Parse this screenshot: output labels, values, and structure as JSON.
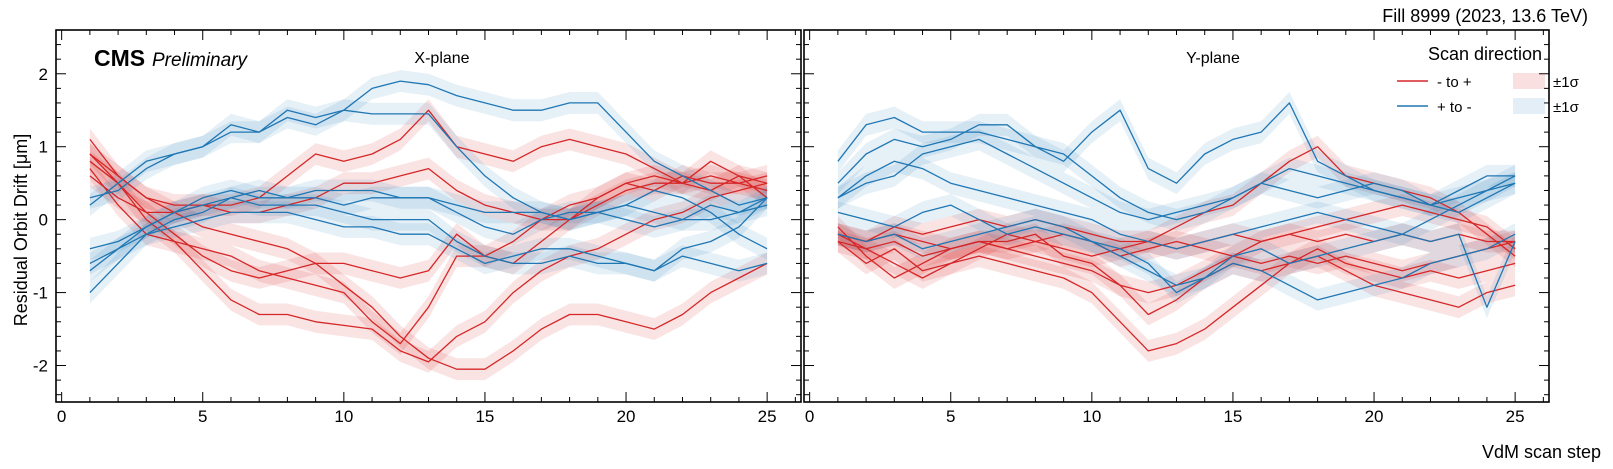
{
  "header": {
    "fill_label": "Fill 8999 (2023, 13.6 TeV)",
    "cms_label": "CMS",
    "preliminary_label": "Preliminary"
  },
  "chart_data": {
    "type": "line",
    "ylabel": "Residual Orbit Drift [μm]",
    "xlabel": "VdM scan step",
    "ylim": [
      -2.5,
      2.6
    ],
    "xlim": [
      -0.2,
      26.2
    ],
    "y_ticks": [
      -2,
      -1,
      0,
      1,
      2
    ],
    "x_ticks": [
      0,
      5,
      10,
      15,
      20,
      25
    ],
    "legend": {
      "title": "Scan direction",
      "entries": [
        {
          "label": "- to +",
          "color": "#d62728"
        },
        {
          "label": "+ to -",
          "color": "#1f77b4"
        }
      ],
      "band_labels": [
        "±1σ",
        "±1σ"
      ],
      "placement": "top-right"
    },
    "band_half_width": 0.15,
    "colors": {
      "minus_to_plus": "#d62728",
      "plus_to_minus": "#1f77b4"
    },
    "x": [
      1,
      2,
      3,
      4,
      5,
      6,
      7,
      8,
      9,
      10,
      11,
      12,
      13,
      14,
      15,
      16,
      17,
      18,
      19,
      20,
      21,
      22,
      23,
      24,
      25
    ],
    "panels": [
      {
        "name": "X-plane",
        "series": [
          {
            "direction": "minus_to_plus",
            "values": [
              1.1,
              0.6,
              0.3,
              0.1,
              -0.1,
              -0.2,
              -0.3,
              -0.4,
              -0.6,
              -0.9,
              -1.2,
              -1.6,
              -1.9,
              -2.05,
              -2.05,
              -1.8,
              -1.5,
              -1.3,
              -1.3,
              -1.4,
              -1.5,
              -1.3,
              -1.0,
              -0.8,
              -0.6
            ]
          },
          {
            "direction": "minus_to_plus",
            "values": [
              0.9,
              0.5,
              0.0,
              -0.3,
              -0.7,
              -1.1,
              -1.3,
              -1.3,
              -1.4,
              -1.45,
              -1.5,
              -1.8,
              -1.95,
              -1.6,
              -1.4,
              -1.0,
              -0.7,
              -0.5,
              -0.4,
              -0.2,
              0.0,
              0.1,
              0.3,
              0.4,
              0.5
            ]
          },
          {
            "direction": "minus_to_plus",
            "values": [
              0.7,
              0.2,
              -0.2,
              -0.3,
              -0.4,
              -0.5,
              -0.7,
              -0.8,
              -0.9,
              -1.0,
              -1.4,
              -1.7,
              -1.2,
              -0.5,
              -0.5,
              -0.6,
              -0.3,
              0.0,
              0.3,
              0.5,
              0.6,
              0.5,
              0.6,
              0.5,
              0.6
            ]
          },
          {
            "direction": "minus_to_plus",
            "values": [
              0.8,
              0.5,
              0.1,
              -0.2,
              -0.5,
              -0.7,
              -0.8,
              -0.7,
              -0.6,
              -0.6,
              -0.7,
              -0.8,
              -0.7,
              -0.2,
              -0.5,
              -0.3,
              0.0,
              0.2,
              0.3,
              0.5,
              0.4,
              0.6,
              0.5,
              0.5,
              0.4
            ]
          },
          {
            "direction": "minus_to_plus",
            "values": [
              0.6,
              0.3,
              0.1,
              0.1,
              0.2,
              0.2,
              0.3,
              0.6,
              0.9,
              0.8,
              0.9,
              1.1,
              1.5,
              1.0,
              0.9,
              0.8,
              1.0,
              1.1,
              1.0,
              0.9,
              0.7,
              0.5,
              0.8,
              0.6,
              0.3
            ]
          },
          {
            "direction": "minus_to_plus",
            "values": [
              0.9,
              0.6,
              0.3,
              0.2,
              0.2,
              0.1,
              0.1,
              0.2,
              0.3,
              0.5,
              0.5,
              0.6,
              0.7,
              0.4,
              0.2,
              0.1,
              0.0,
              0.0,
              0.2,
              0.4,
              0.5,
              0.5,
              0.4,
              0.6,
              0.5
            ]
          },
          {
            "direction": "plus_to_minus",
            "values": [
              0.2,
              0.5,
              0.8,
              0.9,
              1.0,
              1.2,
              1.2,
              1.5,
              1.4,
              1.5,
              1.8,
              1.9,
              1.85,
              1.7,
              1.6,
              1.5,
              1.5,
              1.6,
              1.6,
              1.2,
              0.8,
              0.6,
              0.4,
              0.2,
              0.3
            ]
          },
          {
            "direction": "plus_to_minus",
            "values": [
              0.3,
              0.4,
              0.7,
              0.9,
              1.0,
              1.3,
              1.2,
              1.4,
              1.3,
              1.5,
              1.45,
              1.45,
              1.45,
              1.0,
              0.6,
              0.3,
              0.1,
              0.0,
              0.1,
              0.2,
              0.4,
              0.3,
              0.1,
              -0.2,
              -0.4
            ]
          },
          {
            "direction": "plus_to_minus",
            "values": [
              -0.4,
              -0.3,
              -0.1,
              0.1,
              0.3,
              0.4,
              0.3,
              0.3,
              0.3,
              0.2,
              0.3,
              0.3,
              0.3,
              0.2,
              0.1,
              0.1,
              0.1,
              0.0,
              0.1,
              0.0,
              -0.1,
              0.0,
              0.0,
              0.1,
              0.2
            ]
          },
          {
            "direction": "plus_to_minus",
            "values": [
              -0.7,
              -0.4,
              -0.1,
              0.1,
              0.2,
              0.3,
              0.2,
              0.2,
              0.2,
              0.1,
              0.0,
              0.0,
              0.0,
              -0.3,
              -0.5,
              -0.6,
              -0.6,
              -0.5,
              -0.6,
              -0.6,
              -0.7,
              -0.5,
              -0.6,
              -0.7,
              -0.6
            ]
          },
          {
            "direction": "plus_to_minus",
            "values": [
              -1.0,
              -0.6,
              -0.2,
              -0.1,
              0.0,
              0.1,
              0.1,
              0.1,
              0.0,
              -0.1,
              -0.1,
              -0.2,
              -0.2,
              -0.4,
              -0.6,
              -0.5,
              -0.4,
              -0.4,
              -0.5,
              -0.6,
              -0.7,
              -0.4,
              -0.3,
              -0.1,
              0.3
            ]
          },
          {
            "direction": "plus_to_minus",
            "values": [
              -0.6,
              -0.4,
              -0.2,
              0.0,
              0.1,
              0.3,
              0.4,
              0.3,
              0.4,
              0.4,
              0.4,
              0.3,
              0.3,
              0.1,
              -0.1,
              -0.2,
              0.0,
              0.1,
              0.1,
              0.2,
              0.1,
              0.0,
              0.2,
              0.1,
              0.3
            ]
          }
        ]
      },
      {
        "name": "Y-plane",
        "series": [
          {
            "direction": "minus_to_plus",
            "values": [
              -0.2,
              -0.4,
              -0.3,
              -0.5,
              -0.4,
              -0.3,
              -0.3,
              -0.2,
              -0.5,
              -0.6,
              -0.9,
              -1.3,
              -1.1,
              -0.8,
              -0.6,
              -0.7,
              -0.6,
              -0.5,
              -0.7,
              -0.9,
              -1.0,
              -1.1,
              -1.2,
              -1.0,
              -0.9
            ]
          },
          {
            "direction": "minus_to_plus",
            "values": [
              -0.3,
              -0.6,
              -0.4,
              -0.7,
              -0.6,
              -0.5,
              -0.6,
              -0.7,
              -0.8,
              -1.0,
              -1.4,
              -1.8,
              -1.7,
              -1.5,
              -1.2,
              -0.9,
              -0.6,
              -0.4,
              -0.6,
              -0.7,
              -0.8,
              -0.7,
              -0.8,
              -0.7,
              -0.6
            ]
          },
          {
            "direction": "minus_to_plus",
            "values": [
              -0.2,
              -0.3,
              -0.1,
              -0.2,
              -0.1,
              0.0,
              -0.1,
              0.0,
              -0.1,
              -0.2,
              -0.3,
              -0.3,
              -0.4,
              -0.3,
              -0.2,
              -0.3,
              -0.2,
              -0.3,
              -0.2,
              -0.3,
              -0.2,
              -0.3,
              -0.2,
              -0.3,
              -0.3
            ]
          },
          {
            "direction": "minus_to_plus",
            "values": [
              -0.1,
              -0.5,
              -0.8,
              -0.6,
              -0.4,
              -0.3,
              -0.4,
              -0.5,
              -0.6,
              -0.7,
              -0.9,
              -1.0,
              -0.9,
              -0.7,
              -0.5,
              -0.3,
              -0.2,
              -0.1,
              0.0,
              0.1,
              0.2,
              0.1,
              0.0,
              -0.1,
              -0.4
            ]
          },
          {
            "direction": "minus_to_plus",
            "values": [
              -0.3,
              -0.4,
              -0.6,
              -0.8,
              -0.6,
              -0.4,
              -0.2,
              -0.3,
              -0.4,
              -0.5,
              -0.4,
              -0.3,
              -0.1,
              0.1,
              0.2,
              0.5,
              0.8,
              1.0,
              0.6,
              0.5,
              0.4,
              0.3,
              0.1,
              -0.2,
              -0.5
            ]
          },
          {
            "direction": "minus_to_plus",
            "values": [
              -0.2,
              -0.3,
              -0.2,
              -0.3,
              -0.4,
              -0.3,
              -0.4,
              -0.3,
              -0.2,
              -0.3,
              -0.5,
              -0.4,
              -0.3,
              -0.4,
              -0.5,
              -0.6,
              -0.5,
              -0.6,
              -0.5,
              -0.6,
              -0.7,
              -0.6,
              -0.5,
              -0.4,
              -0.3
            ]
          },
          {
            "direction": "plus_to_minus",
            "values": [
              0.8,
              1.3,
              1.4,
              1.2,
              1.2,
              1.2,
              1.1,
              1.0,
              0.9,
              0.6,
              0.3,
              0.1,
              0.0,
              0.1,
              0.3,
              0.5,
              0.7,
              0.6,
              0.5,
              0.4,
              0.3,
              0.2,
              0.4,
              0.6,
              0.6
            ]
          },
          {
            "direction": "plus_to_minus",
            "values": [
              0.5,
              0.9,
              1.1,
              1.0,
              1.1,
              1.3,
              1.3,
              1.0,
              0.8,
              1.2,
              1.5,
              0.7,
              0.5,
              0.9,
              1.1,
              1.2,
              1.6,
              0.8,
              0.6,
              0.4,
              0.3,
              0.2,
              0.1,
              0.3,
              0.5
            ]
          },
          {
            "direction": "plus_to_minus",
            "values": [
              0.3,
              0.5,
              0.6,
              0.9,
              1.0,
              1.1,
              0.9,
              0.7,
              0.5,
              0.3,
              0.1,
              0.0,
              0.1,
              0.2,
              0.3,
              0.5,
              0.4,
              0.3,
              0.4,
              0.5,
              0.4,
              0.2,
              0.3,
              0.4,
              0.6
            ]
          },
          {
            "direction": "plus_to_minus",
            "values": [
              0.1,
              0.0,
              -0.1,
              0.1,
              0.2,
              0.0,
              -0.2,
              -0.1,
              -0.2,
              -0.3,
              -0.4,
              -0.6,
              -1.0,
              -0.8,
              -0.5,
              -0.4,
              -0.6,
              -0.5,
              -0.4,
              -0.3,
              -0.2,
              -0.3,
              -0.2,
              -1.2,
              -0.3
            ]
          },
          {
            "direction": "plus_to_minus",
            "values": [
              -0.2,
              -0.3,
              -0.2,
              -0.4,
              -0.3,
              -0.2,
              -0.1,
              0.0,
              -0.1,
              -0.3,
              -0.5,
              -0.7,
              -0.9,
              -0.8,
              -0.6,
              -0.7,
              -0.9,
              -1.1,
              -1.0,
              -0.9,
              -0.8,
              -0.6,
              -0.5,
              -0.4,
              -0.2
            ]
          },
          {
            "direction": "plus_to_minus",
            "values": [
              0.3,
              0.6,
              0.8,
              0.7,
              0.5,
              0.4,
              0.3,
              0.2,
              0.1,
              0.0,
              -0.2,
              -0.3,
              -0.4,
              -0.3,
              -0.2,
              -0.1,
              0.0,
              0.1,
              0.0,
              -0.1,
              -0.2,
              0.0,
              0.2,
              0.4,
              0.5
            ]
          }
        ]
      }
    ]
  }
}
